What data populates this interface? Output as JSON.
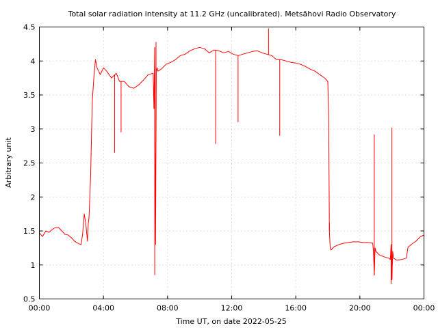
{
  "chart_data": {
    "type": "line",
    "title": "Total solar radiation intensity at 11.2 GHz (uncalibrated). Metsähovi Radio Observatory",
    "xlabel": "Time UT, on date 2022-05-25",
    "ylabel": "Arbitrary unit",
    "xlim": [
      0,
      24
    ],
    "ylim": [
      0.5,
      4.5
    ],
    "x_ticks": [
      0,
      4,
      8,
      12,
      16,
      20,
      24
    ],
    "x_tick_labels": [
      "00:00",
      "04:00",
      "08:00",
      "12:00",
      "16:00",
      "20:00",
      "00:00"
    ],
    "y_ticks": [
      0.5,
      1,
      1.5,
      2,
      2.5,
      3,
      3.5,
      4,
      4.5
    ],
    "y_tick_labels": [
      "0.5",
      "1",
      "1.5",
      "2",
      "2.5",
      "3",
      "3.5",
      "4",
      "4.5"
    ],
    "grid": true,
    "legend": "none",
    "color": "#ff0000",
    "series": [
      {
        "x": [
          0.0,
          0.2,
          0.4,
          0.6,
          0.8,
          1.0,
          1.2,
          1.4,
          1.6,
          1.8,
          2.0,
          2.2,
          2.4,
          2.6,
          2.7,
          2.8,
          2.9,
          3.0,
          3.05,
          3.1,
          3.2,
          3.3,
          3.4,
          3.5,
          3.6,
          3.8,
          4.0,
          4.2,
          4.5,
          4.8,
          5.0,
          5.3,
          5.6,
          5.9,
          6.2,
          6.5,
          6.8,
          7.1,
          7.15,
          7.2,
          7.25,
          7.3,
          7.35,
          7.4,
          7.6,
          7.9,
          8.2,
          8.5,
          8.8,
          9.1,
          9.4,
          9.7,
          10.0,
          10.3,
          10.6,
          10.9,
          11.2,
          11.5,
          11.8,
          12.1,
          12.4,
          12.7,
          13.0,
          13.3,
          13.6,
          13.9,
          14.2,
          14.5,
          14.8,
          15.1,
          15.4,
          15.7,
          16.0,
          16.3,
          16.6,
          16.9,
          17.2,
          17.5,
          17.8,
          18.0,
          18.05,
          18.1,
          18.15,
          18.2,
          18.4,
          18.7,
          19.0,
          19.3,
          19.6,
          19.9,
          20.2,
          20.5,
          20.8,
          20.85,
          20.9,
          20.95,
          21.0,
          21.2,
          21.5,
          21.8,
          21.9,
          21.95,
          22.0,
          22.05,
          22.1,
          22.3,
          22.6,
          22.9,
          23.0,
          23.2,
          23.5,
          23.8,
          24.0
        ],
        "y": [
          1.47,
          1.42,
          1.5,
          1.48,
          1.52,
          1.55,
          1.55,
          1.5,
          1.45,
          1.44,
          1.4,
          1.35,
          1.32,
          1.3,
          1.45,
          1.75,
          1.6,
          1.35,
          1.6,
          1.7,
          2.3,
          3.4,
          3.75,
          4.02,
          3.9,
          3.8,
          3.9,
          3.85,
          3.75,
          3.82,
          3.7,
          3.7,
          3.62,
          3.6,
          3.65,
          3.72,
          3.8,
          3.82,
          3.3,
          4.2,
          1.3,
          3.85,
          3.9,
          3.85,
          3.88,
          3.95,
          3.98,
          4.02,
          4.08,
          4.1,
          4.15,
          4.18,
          4.2,
          4.18,
          4.12,
          4.16,
          4.15,
          4.12,
          4.14,
          4.1,
          4.08,
          4.1,
          4.12,
          4.14,
          4.15,
          4.12,
          4.1,
          4.08,
          4.02,
          4.02,
          4.0,
          3.98,
          3.97,
          3.95,
          3.92,
          3.88,
          3.85,
          3.8,
          3.75,
          3.7,
          3.2,
          1.5,
          1.25,
          1.22,
          1.27,
          1.3,
          1.32,
          1.33,
          1.34,
          1.34,
          1.33,
          1.33,
          1.32,
          1.2,
          0.85,
          1.25,
          1.2,
          1.15,
          1.12,
          1.1,
          1.08,
          1.3,
          0.78,
          1.2,
          1.1,
          1.07,
          1.08,
          1.1,
          1.26,
          1.3,
          1.35,
          1.42,
          1.44
        ]
      }
    ],
    "spikes": [
      {
        "x": 4.7,
        "y": 2.65
      },
      {
        "x": 5.1,
        "y": 2.95
      },
      {
        "x": 7.2,
        "y": 0.85
      },
      {
        "x": 7.28,
        "y": 4.28
      },
      {
        "x": 11.0,
        "y": 2.78
      },
      {
        "x": 12.4,
        "y": 3.1
      },
      {
        "x": 14.3,
        "y": 4.48
      },
      {
        "x": 15.0,
        "y": 2.9
      },
      {
        "x": 18.1,
        "y": 1.62
      },
      {
        "x": 20.9,
        "y": 2.92
      },
      {
        "x": 21.95,
        "y": 0.72
      },
      {
        "x": 22.0,
        "y": 3.02
      }
    ]
  }
}
